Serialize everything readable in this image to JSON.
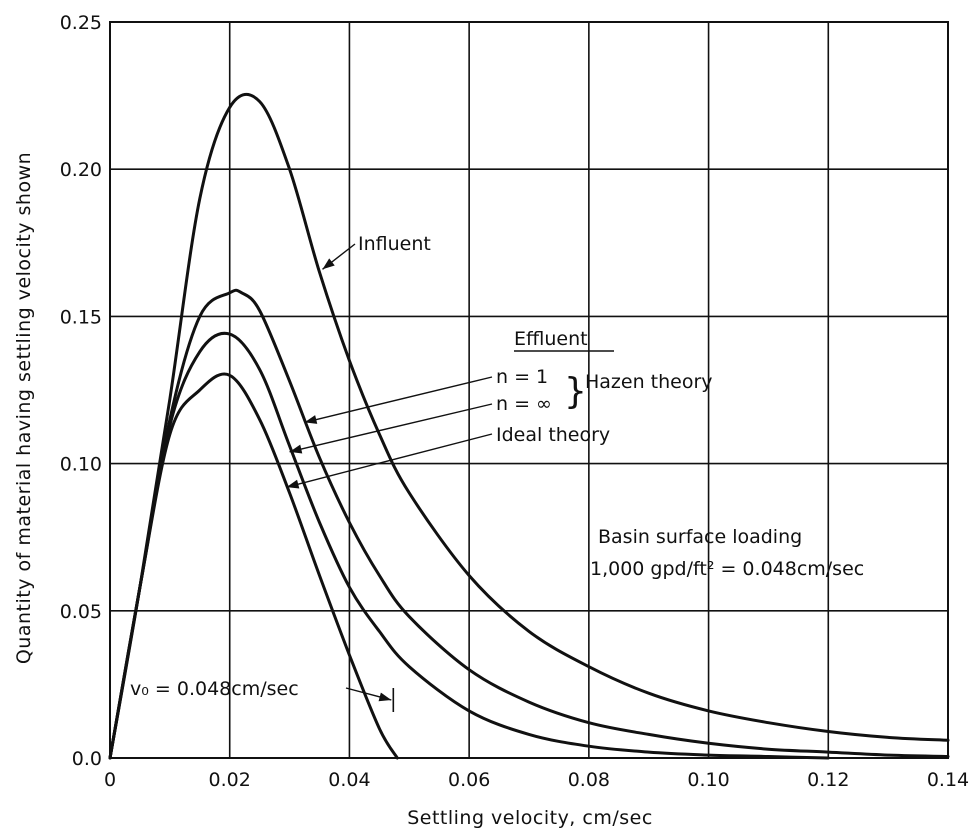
{
  "chart_data": {
    "type": "line",
    "xlabel": "Settling velocity, cm/sec",
    "ylabel": "Quantity of material having settling velocity shown",
    "xlim": [
      0,
      0.14
    ],
    "ylim": [
      0,
      0.25
    ],
    "x_ticks": [
      "0",
      "0.02",
      "0.04",
      "0.06",
      "0.08",
      "0.10",
      "0.12",
      "0.14"
    ],
    "y_ticks": [
      "0.0",
      "0.05",
      "0.10",
      "0.15",
      "0.20",
      "0.25"
    ],
    "grid": true,
    "series": [
      {
        "name": "Influent",
        "x": [
          0,
          0.005,
          0.01,
          0.015,
          0.02,
          0.025,
          0.03,
          0.035,
          0.04,
          0.045,
          0.05,
          0.06,
          0.07,
          0.08,
          0.09,
          0.1,
          0.11,
          0.12,
          0.13,
          0.14
        ],
        "y": [
          0,
          0.058,
          0.122,
          0.19,
          0.221,
          0.223,
          0.2,
          0.165,
          0.135,
          0.11,
          0.09,
          0.062,
          0.043,
          0.031,
          0.022,
          0.016,
          0.012,
          0.009,
          0.007,
          0.006
        ]
      },
      {
        "name": "n=1",
        "x": [
          0,
          0.005,
          0.01,
          0.015,
          0.02,
          0.022,
          0.025,
          0.03,
          0.035,
          0.04,
          0.045,
          0.05,
          0.06,
          0.07,
          0.08,
          0.09,
          0.1,
          0.11,
          0.12,
          0.13,
          0.14
        ],
        "y": [
          0,
          0.058,
          0.115,
          0.15,
          0.158,
          0.158,
          0.152,
          0.128,
          0.102,
          0.08,
          0.062,
          0.048,
          0.03,
          0.019,
          0.012,
          0.008,
          0.005,
          0.003,
          0.002,
          0.001,
          0.0005
        ]
      },
      {
        "name": "n=∞",
        "x": [
          0,
          0.005,
          0.01,
          0.015,
          0.02,
          0.025,
          0.03,
          0.035,
          0.04,
          0.045,
          0.05,
          0.06,
          0.07,
          0.08,
          0.09,
          0.1,
          0.11,
          0.12
        ],
        "y": [
          0,
          0.058,
          0.113,
          0.138,
          0.144,
          0.132,
          0.106,
          0.08,
          0.058,
          0.043,
          0.031,
          0.016,
          0.008,
          0.004,
          0.002,
          0.001,
          0.0005,
          0
        ]
      },
      {
        "name": "Ideal theory",
        "x": [
          0,
          0.005,
          0.01,
          0.015,
          0.02,
          0.025,
          0.03,
          0.035,
          0.04,
          0.045,
          0.048
        ],
        "y": [
          0,
          0.058,
          0.11,
          0.125,
          0.13,
          0.115,
          0.09,
          0.062,
          0.035,
          0.01,
          0
        ]
      }
    ],
    "annotations": {
      "influent": "Influent",
      "effluent_heading": "Effluent",
      "n1": "n = 1",
      "ninf": "n = ∞",
      "hazen": "Hazen theory",
      "ideal": "Ideal theory",
      "basin_line1": "Basin surface loading",
      "basin_line2": "1,000 gpd/ft² = 0.048cm/sec",
      "vo": "v₀ = 0.048cm/sec"
    }
  }
}
